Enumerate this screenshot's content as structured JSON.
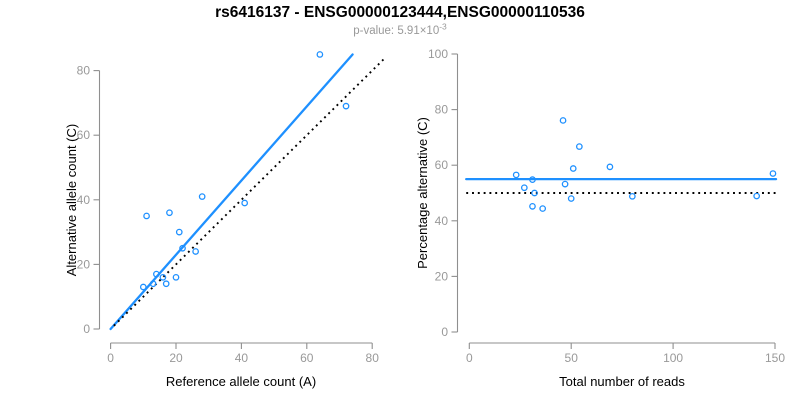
{
  "header": {
    "title": "rs6416137 - ENSG00000123444,ENSG00000110536",
    "p_value_base": "p-value: 5.91×10",
    "p_value_exponent": "-3"
  },
  "colors": {
    "accent_blue": "#1e90ff",
    "axis_gray": "#8f8f8f",
    "tick_text_gray": "#999999",
    "label_black": "#000000",
    "dotted_line_black": "#000000"
  },
  "chart_data": [
    {
      "type": "scatter",
      "xlabel": "Reference allele count (A)",
      "ylabel": "Alternative allele count (C)",
      "xlim": [
        0,
        80
      ],
      "ylim": [
        0,
        85
      ],
      "xticks": [
        0,
        20,
        40,
        60,
        80
      ],
      "yticks": [
        0,
        20,
        40,
        60,
        80
      ],
      "grid": false,
      "points": [
        [
          10,
          13
        ],
        [
          11,
          35
        ],
        [
          13,
          14
        ],
        [
          14,
          17
        ],
        [
          16,
          16
        ],
        [
          17,
          14
        ],
        [
          18,
          36
        ],
        [
          20,
          16
        ],
        [
          21,
          30
        ],
        [
          22,
          25
        ],
        [
          26,
          24
        ],
        [
          28,
          41
        ],
        [
          41,
          39
        ],
        [
          64,
          85
        ],
        [
          72,
          69
        ]
      ],
      "lines": [
        {
          "name": "regression-line",
          "from": [
            0,
            0
          ],
          "to": [
            74,
            85
          ],
          "color": "accent",
          "style": "solid"
        },
        {
          "name": "identity-line",
          "from": [
            1,
            1
          ],
          "to": [
            84,
            84
          ],
          "color": "black",
          "style": "dotted"
        }
      ]
    },
    {
      "type": "scatter",
      "xlabel": "Total number of reads",
      "ylabel": "Percentage alternative (C)",
      "xlim": [
        0,
        150
      ],
      "ylim": [
        0,
        100
      ],
      "xticks": [
        0,
        50,
        100,
        150
      ],
      "yticks": [
        0,
        20,
        40,
        60,
        80,
        100
      ],
      "grid": false,
      "points": [
        [
          23,
          56.5
        ],
        [
          27,
          51.9
        ],
        [
          31,
          45.2
        ],
        [
          31,
          54.8
        ],
        [
          32,
          50
        ],
        [
          36,
          44.4
        ],
        [
          46,
          76.1
        ],
        [
          47,
          53.2
        ],
        [
          50,
          48
        ],
        [
          51,
          58.8
        ],
        [
          54,
          66.7
        ],
        [
          69,
          59.4
        ],
        [
          80,
          48.8
        ],
        [
          141,
          48.9
        ],
        [
          149,
          57
        ]
      ],
      "lines": [
        {
          "name": "mean-line",
          "from": [
            -1.5,
            55
          ],
          "to": [
            150.5,
            55
          ],
          "color": "accent",
          "style": "solid"
        },
        {
          "name": "fifty-percent-line",
          "from": [
            -1.5,
            50
          ],
          "to": [
            150.5,
            50
          ],
          "color": "black",
          "style": "dotted"
        }
      ]
    }
  ]
}
